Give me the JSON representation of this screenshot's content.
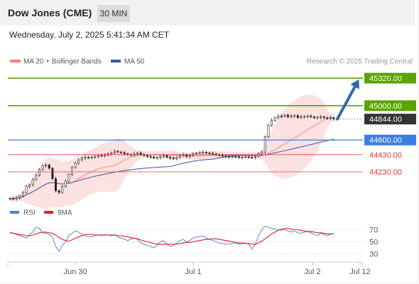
{
  "header": {
    "title": "Dow Jones (CME)",
    "timeframe_label": "30 MIN",
    "datetime": "Wednesday, July 2, 2025 5:41:34 AM CET"
  },
  "legend": {
    "ma20_label": "MA 20 + Bollinger Bands",
    "ma50_label": "MA 50",
    "copyright": "Research © 2025 Trading Central"
  },
  "colors": {
    "resistance": "#5aa400",
    "support_blue": "#3a7ee0",
    "support_red": "#e04040",
    "last_price_bg": "#333333",
    "bollinger_fill": "#fbdcdc",
    "ma20": "#f08080",
    "ma50": "#36599a",
    "arrow": "#2e6aa8",
    "rsi": "#4f7ad8",
    "rsi_ma": "#e02020"
  },
  "chart_data": [
    {
      "type": "candlestick",
      "title": "Dow Jones (CME)",
      "timeframe": "30 MIN",
      "x_tick_labels": [
        "Jun 30",
        "Jul 1",
        "Jul 2",
        "Jul 12"
      ],
      "ylim": [
        43850,
        45420
      ],
      "series": [
        {
          "name": "MA 20 + Bollinger Bands"
        },
        {
          "name": "MA 50"
        }
      ],
      "level_lines": [
        {
          "label": "45320.00",
          "value": 45320,
          "kind": "target"
        },
        {
          "label": "45000.00",
          "value": 45000,
          "kind": "resistance"
        },
        {
          "label": "44844.00",
          "value": 44844,
          "kind": "last-price"
        },
        {
          "label": "44600.00",
          "value": 44600,
          "kind": "pivot"
        },
        {
          "label": "44430.00",
          "value": 44430,
          "kind": "support"
        },
        {
          "label": "44230.00",
          "value": 44230,
          "kind": "support"
        }
      ],
      "closes": [
        43920,
        43915,
        43930,
        43950,
        43990,
        44060,
        44080,
        44140,
        44190,
        44260,
        44300,
        44310,
        44270,
        44150,
        44010,
        43990,
        44060,
        44120,
        44200,
        44280,
        44330,
        44370,
        44390,
        44400,
        44395,
        44400,
        44410,
        44420,
        44415,
        44425,
        44440,
        44450,
        44470,
        44460,
        44455,
        44440,
        44430,
        44425,
        44440,
        44450,
        44430,
        44420,
        44410,
        44400,
        44390,
        44395,
        44410,
        44420,
        44400,
        44390,
        44385,
        44400,
        44420,
        44430,
        44410,
        44420,
        44440,
        44450,
        44455,
        44460,
        44450,
        44445,
        44440,
        44430,
        44420,
        44415,
        44410,
        44405,
        44410,
        44405,
        44400,
        44400,
        44405,
        44400,
        44398,
        44410,
        44440,
        44460,
        44640,
        44770,
        44830,
        44860,
        44880,
        44875,
        44890,
        44870,
        44880,
        44885,
        44860,
        44870,
        44875,
        44880,
        44870,
        44860,
        44865,
        44870,
        44860,
        44850,
        44860,
        44844
      ]
    },
    {
      "type": "line",
      "title": "RSI",
      "series": [
        {
          "name": "RSI",
          "values": [
            66,
            64,
            62,
            60,
            58,
            56,
            62,
            66,
            74,
            72,
            65,
            64,
            62,
            58,
            42,
            34,
            44,
            50,
            60,
            64,
            68,
            66,
            62,
            60,
            58,
            58,
            60,
            62,
            60,
            62,
            61,
            60,
            62,
            58,
            56,
            54,
            52,
            54,
            56,
            54,
            48,
            46,
            44,
            42,
            40,
            44,
            50,
            52,
            46,
            42,
            44,
            48,
            52,
            54,
            50,
            52,
            56,
            58,
            58,
            60,
            56,
            54,
            52,
            50,
            48,
            47,
            46,
            46,
            48,
            47,
            46,
            46,
            48,
            46,
            38,
            46,
            60,
            70,
            76,
            74,
            72,
            71,
            70,
            69,
            70,
            68,
            66,
            68,
            65,
            64,
            66,
            67,
            65,
            62,
            60,
            64,
            62,
            60,
            62,
            64
          ]
        },
        {
          "name": "9MA",
          "values": [
            65,
            64,
            63,
            62,
            61,
            60,
            60,
            61,
            63,
            65,
            66,
            66,
            65,
            64,
            61,
            57,
            54,
            52,
            51,
            53,
            56,
            58,
            60,
            62,
            62,
            62,
            61,
            61,
            61,
            61,
            61,
            61,
            61,
            60,
            60,
            59,
            58,
            57,
            56,
            55,
            53,
            51,
            50,
            49,
            47,
            46,
            46,
            46,
            46,
            46,
            46,
            46,
            47,
            48,
            49,
            49,
            50,
            51,
            52,
            53,
            54,
            54,
            55,
            55,
            54,
            53,
            52,
            51,
            50,
            49,
            48,
            48,
            47,
            47,
            46,
            46,
            48,
            51,
            55,
            59,
            63,
            66,
            69,
            71,
            72,
            72,
            71,
            70,
            70,
            69,
            68,
            67,
            67,
            66,
            65,
            65,
            64,
            63,
            63,
            63
          ]
        }
      ],
      "ylim": [
        20,
        80
      ],
      "y_tick_labels": [
        "70",
        "50",
        "30"
      ],
      "reference_lines": [
        70,
        50,
        30
      ]
    }
  ]
}
